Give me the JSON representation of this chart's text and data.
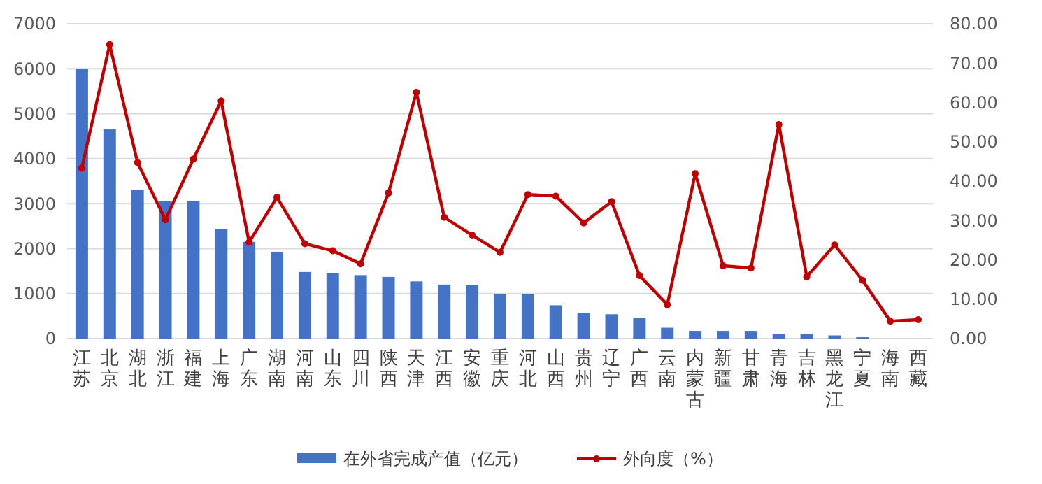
{
  "chart_data": {
    "type": "bar",
    "categories": [
      "江苏",
      "北京",
      "湖北",
      "浙江",
      "福建",
      "上海",
      "广东",
      "湖南",
      "河南",
      "山东",
      "四川",
      "陕西",
      "天津",
      "江西",
      "安徽",
      "重庆",
      "河北",
      "山西",
      "贵州",
      "辽宁",
      "广西",
      "云南",
      "内蒙古",
      "新疆",
      "甘肃",
      "青海",
      "吉林",
      "黑龙江",
      "宁夏",
      "海南",
      "西藏"
    ],
    "series": [
      {
        "name": "在外省完成产值（亿元）",
        "color": "#4472c4",
        "values": [
          6000,
          4650,
          3300,
          3050,
          3050,
          2430,
          2150,
          1930,
          1480,
          1450,
          1410,
          1370,
          1270,
          1200,
          1190,
          990,
          990,
          740,
          570,
          540,
          460,
          240,
          170,
          170,
          170,
          100,
          100,
          70,
          30,
          0,
          0
        ]
      },
      {
        "name": "外向度（%）",
        "type": "line",
        "axis": "y2",
        "color": "#c00000",
        "marker": "circle",
        "values": [
          43.3,
          74.7,
          44.7,
          30.2,
          45.6,
          60.4,
          24.5,
          35.9,
          24.1,
          22.3,
          19.0,
          37.0,
          62.6,
          30.8,
          26.3,
          21.9,
          36.6,
          36.2,
          29.4,
          34.8,
          16.0,
          8.6,
          41.9,
          18.5,
          17.9,
          54.4,
          15.7,
          23.8,
          14.8,
          4.4,
          4.8
        ]
      }
    ],
    "ylim": [
      0,
      7000
    ],
    "yticks": [
      0,
      1000,
      2000,
      3000,
      4000,
      5000,
      6000,
      7000
    ],
    "y2lim": [
      0,
      80
    ],
    "y2ticks": [
      {
        "value": 0,
        "label": "0.00"
      },
      {
        "value": 10,
        "label": "10.00"
      },
      {
        "value": 20,
        "label": "20.00"
      },
      {
        "value": 30,
        "label": "30.00"
      },
      {
        "value": 40,
        "label": "40.00"
      },
      {
        "value": 50,
        "label": "50.00"
      },
      {
        "value": 60,
        "label": "60.00"
      },
      {
        "value": 70,
        "label": "70.00"
      },
      {
        "value": 80,
        "label": "80.00"
      }
    ],
    "grid": "y",
    "legend": "bottom"
  }
}
